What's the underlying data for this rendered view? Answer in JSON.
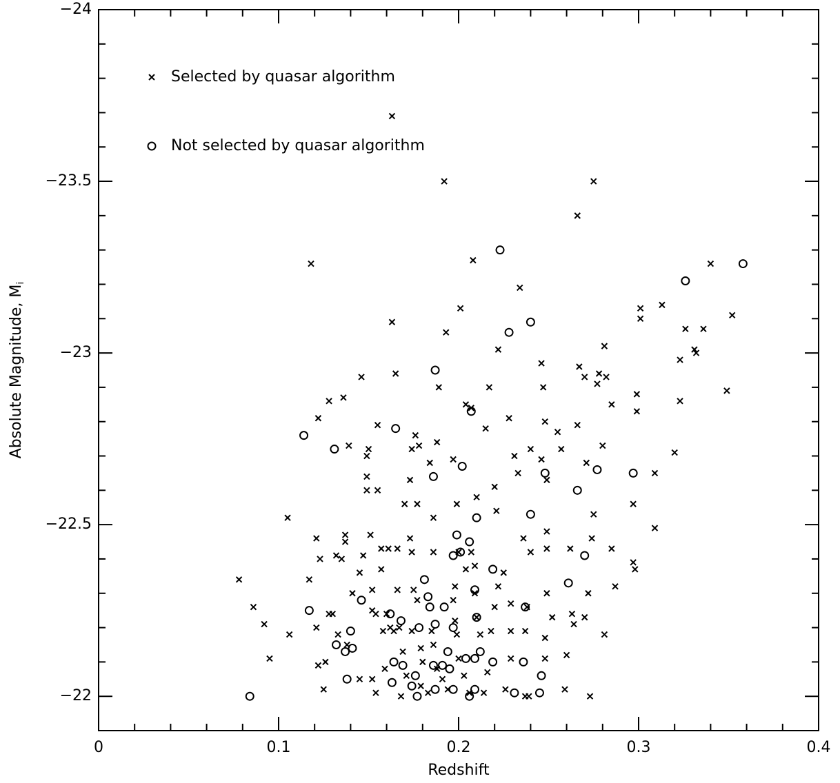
{
  "chart_data": {
    "type": "scatter",
    "x_label": "Redshift",
    "y_label": "Absolute Magnitude, M",
    "y_label_subscript": "i",
    "xlim": [
      0,
      0.4
    ],
    "ylim": [
      -21.9,
      -24
    ],
    "xticks": [
      0,
      0.1,
      0.2,
      0.3,
      0.4
    ],
    "yticks": [
      {
        "value": -24,
        "label": "−24"
      },
      {
        "value": -23.5,
        "label": "−23.5"
      },
      {
        "value": -23,
        "label": "−23"
      },
      {
        "value": -22.5,
        "label": "−22.5"
      },
      {
        "value": -22,
        "label": "−22"
      }
    ],
    "legend": "upper left",
    "series": [
      {
        "name": "Selected by quasar algorithm",
        "color": "#000000",
        "marker": "x",
        "x": [
          0.078,
          0.086,
          0.092,
          0.095,
          0.106,
          0.105,
          0.118,
          0.122,
          0.128,
          0.136,
          0.146,
          0.117,
          0.121,
          0.123,
          0.132,
          0.137,
          0.137,
          0.139,
          0.135,
          0.141,
          0.145,
          0.147,
          0.15,
          0.149,
          0.149,
          0.149,
          0.155,
          0.155,
          0.151,
          0.152,
          0.163,
          0.165,
          0.163,
          0.174,
          0.176,
          0.173,
          0.17,
          0.173,
          0.177,
          0.178,
          0.184,
          0.186,
          0.188,
          0.189,
          0.186,
          0.192,
          0.193,
          0.197,
          0.199,
          0.201,
          0.204,
          0.207,
          0.208,
          0.21,
          0.215,
          0.217,
          0.22,
          0.221,
          0.222,
          0.228,
          0.231,
          0.234,
          0.233,
          0.24,
          0.246,
          0.246,
          0.247,
          0.248,
          0.249,
          0.255,
          0.257,
          0.266,
          0.266,
          0.267,
          0.27,
          0.275,
          0.277,
          0.278,
          0.281,
          0.282,
          0.285,
          0.28,
          0.271,
          0.299,
          0.299,
          0.301,
          0.301,
          0.313,
          0.32,
          0.323,
          0.323,
          0.326,
          0.331,
          0.332,
          0.336,
          0.34,
          0.349,
          0.352,
          0.309,
          0.309,
          0.297,
          0.297,
          0.298,
          0.285,
          0.287,
          0.281,
          0.273,
          0.259,
          0.26,
          0.263,
          0.264,
          0.27,
          0.272,
          0.274,
          0.275,
          0.262,
          0.249,
          0.249,
          0.249,
          0.248,
          0.252,
          0.248,
          0.239,
          0.237,
          0.237,
          0.238,
          0.24,
          0.236,
          0.229,
          0.229,
          0.229,
          0.226,
          0.225,
          0.222,
          0.22,
          0.218,
          0.216,
          0.214,
          0.212,
          0.21,
          0.209,
          0.209,
          0.207,
          0.204,
          0.2,
          0.198,
          0.197,
          0.198,
          0.199,
          0.2,
          0.203,
          0.206,
          0.194,
          0.191,
          0.188,
          0.186,
          0.185,
          0.183,
          0.179,
          0.18,
          0.179,
          0.177,
          0.175,
          0.174,
          0.171,
          0.169,
          0.167,
          0.166,
          0.164,
          0.162,
          0.16,
          0.158,
          0.157,
          0.157,
          0.161,
          0.166,
          0.174,
          0.168,
          0.154,
          0.152,
          0.159,
          0.145,
          0.125,
          0.126,
          0.122,
          0.121,
          0.128,
          0.133,
          0.138,
          0.13,
          0.152,
          0.154
        ],
        "values": [
          -22.34,
          -22.26,
          -22.21,
          -22.11,
          -22.18,
          -22.52,
          -23.26,
          -22.81,
          -22.86,
          -22.87,
          -22.93,
          -22.34,
          -22.46,
          -22.4,
          -22.41,
          -22.47,
          -22.45,
          -22.73,
          -22.4,
          -22.3,
          -22.36,
          -22.41,
          -22.72,
          -22.7,
          -22.64,
          -22.6,
          -22.79,
          -22.6,
          -22.47,
          -22.31,
          -23.09,
          -22.94,
          -23.69,
          -22.72,
          -22.76,
          -22.63,
          -22.56,
          -22.46,
          -22.56,
          -22.73,
          -22.68,
          -22.52,
          -22.74,
          -22.9,
          -22.42,
          -23.5,
          -23.06,
          -22.69,
          -22.56,
          -23.13,
          -22.85,
          -22.84,
          -23.27,
          -22.58,
          -22.78,
          -22.9,
          -22.61,
          -22.54,
          -23.01,
          -22.81,
          -22.7,
          -23.19,
          -22.65,
          -22.72,
          -22.69,
          -22.97,
          -22.9,
          -22.8,
          -22.63,
          -22.77,
          -22.72,
          -22.79,
          -23.4,
          -22.96,
          -22.93,
          -23.5,
          -22.91,
          -22.94,
          -23.02,
          -22.93,
          -22.85,
          -22.73,
          -22.68,
          -22.88,
          -22.83,
          -23.1,
          -23.13,
          -23.14,
          -22.71,
          -22.98,
          -22.86,
          -23.07,
          -23.01,
          -23.0,
          -23.07,
          -23.26,
          -22.89,
          -23.11,
          -22.65,
          -22.49,
          -22.56,
          -22.39,
          -22.37,
          -22.43,
          -22.32,
          -22.18,
          -22.0,
          -22.02,
          -22.12,
          -22.24,
          -22.21,
          -22.23,
          -22.3,
          -22.46,
          -22.53,
          -22.43,
          -22.48,
          -22.43,
          -22.3,
          -22.17,
          -22.23,
          -22.11,
          -22.0,
          -22.0,
          -22.19,
          -22.26,
          -22.42,
          -22.46,
          -22.27,
          -22.19,
          -22.11,
          -22.02,
          -22.36,
          -22.32,
          -22.26,
          -22.19,
          -22.07,
          -22.01,
          -22.18,
          -22.23,
          -22.3,
          -22.38,
          -22.42,
          -22.37,
          -22.42,
          -22.32,
          -22.28,
          -22.22,
          -22.18,
          -22.11,
          -22.06,
          -22.01,
          -22.02,
          -22.05,
          -22.08,
          -22.15,
          -22.19,
          -22.01,
          -22.03,
          -22.1,
          -22.14,
          -22.28,
          -22.31,
          -22.19,
          -22.06,
          -22.13,
          -22.2,
          -22.31,
          -22.19,
          -22.2,
          -22.24,
          -22.19,
          -22.37,
          -22.43,
          -22.43,
          -22.43,
          -22.42,
          -22.0,
          -22.01,
          -22.05,
          -22.08,
          -22.05,
          -22.02,
          -22.1,
          -22.09,
          -22.2,
          -22.24,
          -22.18,
          -22.15,
          -22.24,
          -22.25,
          -22.24
        ]
      },
      {
        "name": "Not selected by quasar algorithm",
        "color": "#000000",
        "marker": "o",
        "x": [
          0.084,
          0.114,
          0.117,
          0.131,
          0.132,
          0.137,
          0.14,
          0.141,
          0.138,
          0.146,
          0.162,
          0.163,
          0.164,
          0.165,
          0.168,
          0.169,
          0.174,
          0.176,
          0.177,
          0.178,
          0.181,
          0.183,
          0.184,
          0.186,
          0.187,
          0.187,
          0.186,
          0.187,
          0.191,
          0.192,
          0.194,
          0.195,
          0.197,
          0.197,
          0.199,
          0.201,
          0.202,
          0.204,
          0.206,
          0.207,
          0.209,
          0.209,
          0.21,
          0.21,
          0.212,
          0.219,
          0.219,
          0.223,
          0.228,
          0.231,
          0.236,
          0.237,
          0.24,
          0.24,
          0.245,
          0.246,
          0.248,
          0.261,
          0.266,
          0.27,
          0.277,
          0.297,
          0.326,
          0.358,
          0.206,
          0.197,
          0.209
        ],
        "values": [
          -22.0,
          -22.76,
          -22.25,
          -22.72,
          -22.15,
          -22.13,
          -22.19,
          -22.14,
          -22.05,
          -22.28,
          -22.24,
          -22.04,
          -22.1,
          -22.78,
          -22.22,
          -22.09,
          -22.03,
          -22.06,
          -22.0,
          -22.2,
          -22.34,
          -22.29,
          -22.26,
          -22.09,
          -22.02,
          -22.95,
          -22.64,
          -22.21,
          -22.09,
          -22.26,
          -22.13,
          -22.08,
          -22.2,
          -22.41,
          -22.47,
          -22.42,
          -22.67,
          -22.11,
          -22.45,
          -22.83,
          -22.31,
          -22.11,
          -22.23,
          -22.52,
          -22.13,
          -22.37,
          -22.1,
          -23.3,
          -23.06,
          -22.01,
          -22.1,
          -22.26,
          -22.53,
          -23.09,
          -22.01,
          -22.06,
          -22.65,
          -22.33,
          -22.6,
          -22.41,
          -22.66,
          -22.65,
          -23.21,
          -23.26,
          -22.0,
          -22.02,
          -22.02
        ]
      }
    ]
  }
}
